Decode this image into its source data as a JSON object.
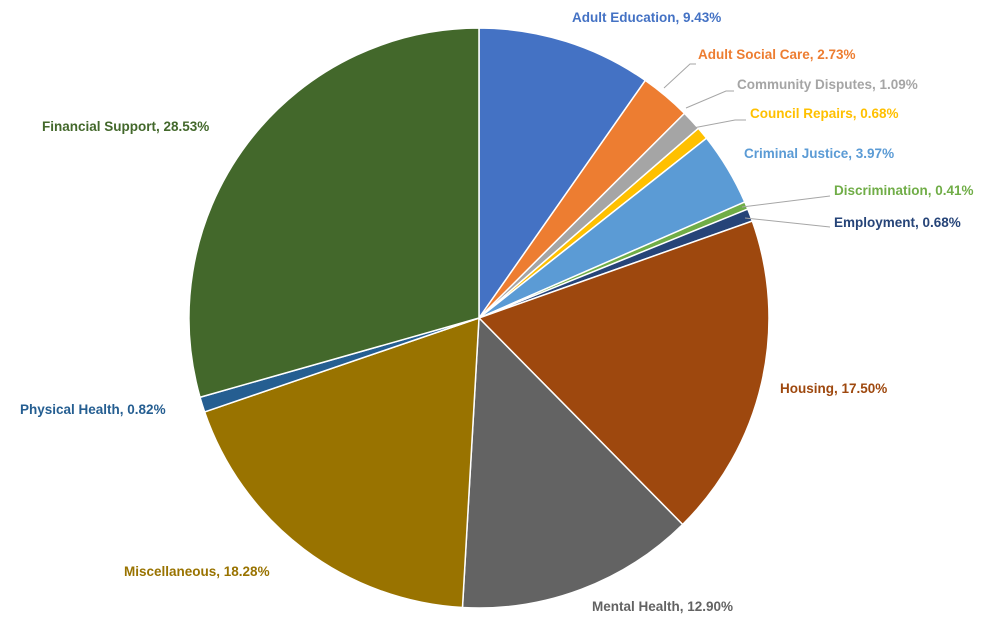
{
  "chart_data": {
    "type": "pie",
    "title": "",
    "slices": [
      {
        "name": "Adult Education",
        "value": 9.43,
        "label": "Adult Education, 9.43%",
        "color": "#4472C4"
      },
      {
        "name": "Adult Social Care",
        "value": 2.73,
        "label": "Adult Social Care, 2.73%",
        "color": "#ED7D31"
      },
      {
        "name": "Community Disputes",
        "value": 1.09,
        "label": "Community Disputes, 1.09%",
        "color": "#A5A5A5"
      },
      {
        "name": "Council Repairs",
        "value": 0.68,
        "label": "Council Repairs, 0.68%",
        "color": "#FFC000"
      },
      {
        "name": "Criminal Justice",
        "value": 3.97,
        "label": "Criminal Justice, 3.97%",
        "color": "#5B9BD5"
      },
      {
        "name": "Discrimination",
        "value": 0.41,
        "label": "Discrimination, 0.41%",
        "color": "#70AD47"
      },
      {
        "name": "Employment",
        "value": 0.68,
        "label": "Employment, 0.68%",
        "color": "#264478"
      },
      {
        "name": "Housing",
        "value": 17.5,
        "label": "Housing, 17.50%",
        "color": "#9E480E"
      },
      {
        "name": "Mental Health",
        "value": 12.9,
        "label": "Mental Health, 12.90%",
        "color": "#636363"
      },
      {
        "name": "Miscellaneous",
        "value": 18.28,
        "label": "Miscellaneous, 18.28%",
        "color": "#997300"
      },
      {
        "name": "Physical Health",
        "value": 0.82,
        "label": "Physical Health, 0.82%",
        "color": "#255E91"
      },
      {
        "name": "Financial Support",
        "value": 28.53,
        "label": "Financial Support, 28.53%",
        "color": "#43682B"
      }
    ],
    "legend": "none"
  }
}
